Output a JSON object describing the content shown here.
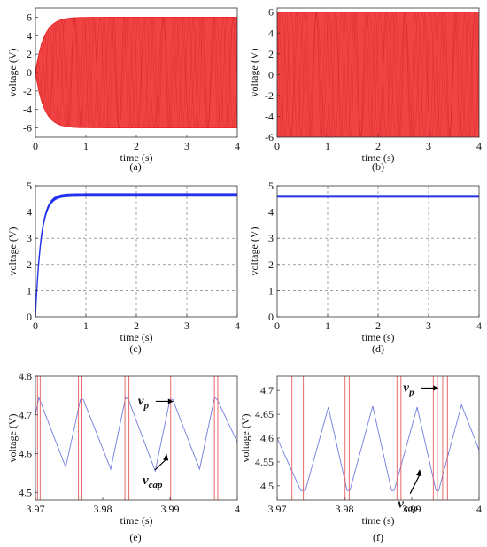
{
  "colors": {
    "red": "#ee2222",
    "blue": "#2233ee",
    "grid": "#666666",
    "sub_blue": "#6f7de0",
    "sub_red": "#e45a5a"
  },
  "chart_data": [
    {
      "id": "a",
      "panel_label": "(a)",
      "type": "line",
      "xlabel": "time (s)",
      "ylabel": "voltage (V)",
      "xlim": [
        0,
        4
      ],
      "ylim": [
        -7,
        7
      ],
      "xticks": [
        0,
        1,
        2,
        3,
        4
      ],
      "yticks": [
        -6,
        -4,
        -2,
        0,
        2,
        4,
        6
      ],
      "series": [
        {
          "color": "#ee2222",
          "kind": "oscillation",
          "amplitude": 6,
          "start": 0,
          "rise_time": 0.5,
          "x_range": [
            0,
            4
          ]
        }
      ],
      "grid": false
    },
    {
      "id": "b",
      "panel_label": "(b)",
      "type": "line",
      "xlabel": "time (s)",
      "ylabel": "voltage (V)",
      "xlim": [
        0,
        4
      ],
      "ylim": [
        -6,
        6.4
      ],
      "xticks": [
        0,
        1,
        2,
        3,
        4
      ],
      "yticks": [
        -6,
        -4,
        -2,
        0,
        2,
        4,
        6
      ],
      "series": [
        {
          "color": "#ee2222",
          "kind": "oscillation",
          "amplitude": 6,
          "start": 6,
          "rise_time": 0,
          "x_range": [
            0,
            4
          ]
        }
      ],
      "grid": false
    },
    {
      "id": "c",
      "panel_label": "(c)",
      "type": "line",
      "xlabel": "time (s)",
      "ylabel": "voltage (V)",
      "xlim": [
        0,
        4
      ],
      "ylim": [
        0,
        5
      ],
      "xticks": [
        0,
        1,
        2,
        3,
        4
      ],
      "yticks": [
        0,
        1,
        2,
        3,
        4,
        5
      ],
      "series": [
        {
          "color": "#2233ee",
          "kind": "charging",
          "final": 4.65,
          "ripple": 0.09,
          "tau": 0.11,
          "x_range": [
            0,
            4
          ]
        }
      ],
      "grid": true
    },
    {
      "id": "d",
      "panel_label": "(d)",
      "type": "line",
      "xlabel": "time (s)",
      "ylabel": "voltage (V)",
      "xlim": [
        0,
        4
      ],
      "ylim": [
        0,
        5
      ],
      "xticks": [
        0,
        1,
        2,
        3,
        4
      ],
      "yticks": [
        0,
        1,
        2,
        3,
        4,
        5
      ],
      "series": [
        {
          "color": "#2233ee",
          "kind": "band",
          "low": 4.55,
          "high": 4.65,
          "x_range": [
            0,
            4
          ]
        }
      ],
      "grid": true
    },
    {
      "id": "e",
      "panel_label": "(e)",
      "type": "line",
      "xlabel": "time (s)",
      "ylabel": "voltage (V)",
      "xlim": [
        3.97,
        4.0
      ],
      "ylim": [
        4.48,
        4.8
      ],
      "xticks": [
        3.97,
        3.98,
        3.99,
        4
      ],
      "xticklabels": [
        "3.97",
        "3.98",
        "3.99",
        "4"
      ],
      "yticks": [
        4.5,
        4.6,
        4.7,
        4.8
      ],
      "yticklabels": [
        "4.5",
        "4.6",
        "4.7",
        "4.8"
      ],
      "series": [
        {
          "name": "v_cap",
          "color": "#6f7de0",
          "kind": "sawtooth",
          "x": [
            3.97,
            3.9705,
            3.9745,
            3.9767,
            3.9771,
            3.9812,
            3.9834,
            3.9838,
            3.9878,
            3.99,
            3.9904,
            3.9944,
            3.9966,
            3.997,
            4.0
          ],
          "y": [
            4.7,
            4.745,
            4.565,
            4.74,
            4.74,
            4.56,
            4.745,
            4.74,
            4.555,
            4.74,
            4.74,
            4.56,
            4.745,
            4.74,
            4.63
          ]
        },
        {
          "name": "v_p",
          "color": "#e45a5a",
          "kind": "spikes",
          "x": [
            3.9703,
            3.9707,
            3.9764,
            3.9769,
            3.9833,
            3.9839,
            3.9901,
            3.9906,
            3.9966,
            3.9971
          ]
        }
      ],
      "annotations": [
        {
          "text": "v",
          "sub": "p",
          "at": [
            3.9905,
            4.735
          ],
          "arrow_to": [
            3.9905,
            4.735
          ]
        },
        {
          "text": "v",
          "sub": "cap",
          "at": [
            3.9875,
            4.535
          ],
          "arrow_to": [
            3.9895,
            4.6
          ]
        }
      ],
      "grid": false
    },
    {
      "id": "f",
      "panel_label": "(f)",
      "type": "line",
      "xlabel": "time (s)",
      "ylabel": "voltage (V)",
      "xlim": [
        3.97,
        4.0
      ],
      "ylim": [
        4.47,
        4.73
      ],
      "xticks": [
        3.97,
        3.98,
        3.99,
        4
      ],
      "xticklabels": [
        "3.97",
        "3.98",
        "3.99",
        "4"
      ],
      "yticks": [
        4.5,
        4.55,
        4.6,
        4.65,
        4.7
      ],
      "yticklabels": [
        "4.5",
        "4.55",
        "4.6",
        "4.65",
        "4.7"
      ],
      "series": [
        {
          "name": "v_cap",
          "color": "#6f7de0",
          "kind": "sawtooth",
          "x": [
            3.97,
            3.9735,
            3.9742,
            3.9776,
            3.9804,
            3.9808,
            3.9842,
            3.987,
            3.9874,
            3.9908,
            3.9936,
            3.994,
            3.9974,
            4.0
          ],
          "y": [
            4.6,
            4.49,
            4.49,
            4.665,
            4.49,
            4.49,
            4.667,
            4.49,
            4.49,
            4.665,
            4.49,
            4.49,
            4.67,
            4.575
          ]
        },
        {
          "name": "v_p",
          "color": "#e45a5a",
          "kind": "spikes",
          "x": [
            3.9722,
            3.9739,
            3.9801,
            3.9807,
            3.9878,
            3.9884,
            3.9932,
            3.9938,
            3.9946,
            3.9953
          ]
        }
      ],
      "annotations": [
        {
          "text": "v",
          "sub": "p",
          "at": [
            3.994,
            4.705
          ],
          "arrow_to": [
            3.994,
            4.705
          ]
        },
        {
          "text": "v",
          "sub": "cap",
          "at": [
            3.9895,
            4.465
          ],
          "arrow_to": [
            3.9912,
            4.535
          ]
        }
      ],
      "grid": false
    }
  ]
}
